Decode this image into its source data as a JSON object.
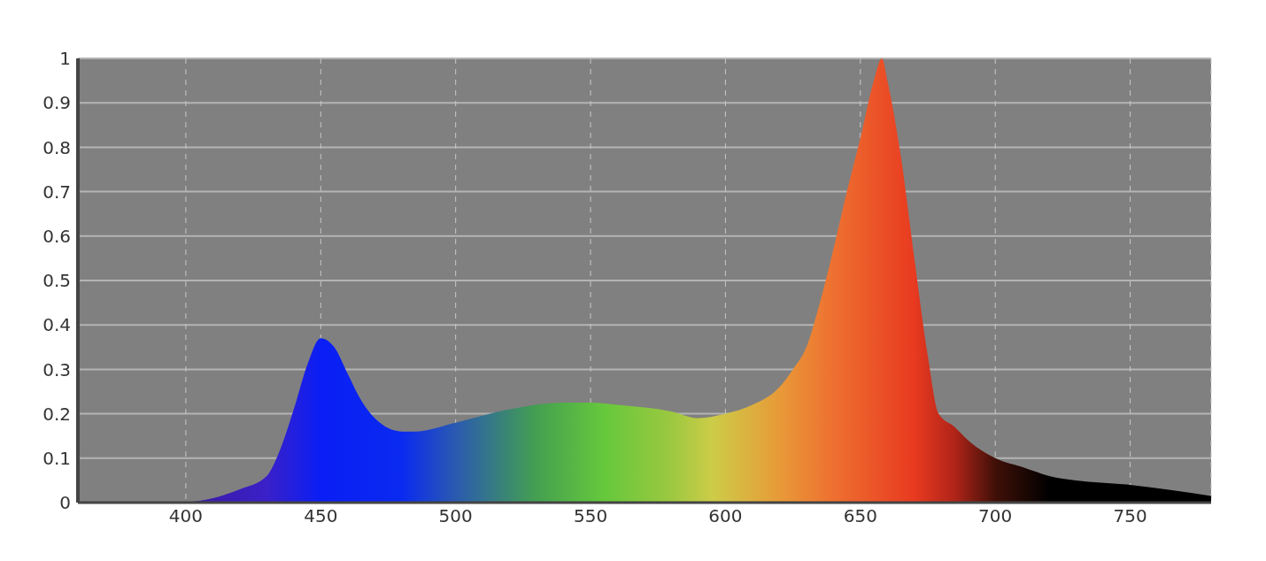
{
  "chart_data": {
    "type": "area",
    "x": [
      400,
      410,
      420,
      430,
      435,
      440,
      445,
      450,
      455,
      460,
      465,
      470,
      480,
      485,
      500,
      520,
      540,
      550,
      560,
      580,
      590,
      600,
      610,
      620,
      625,
      630,
      635,
      640,
      645,
      650,
      655,
      658,
      660,
      665,
      670,
      675,
      679,
      685,
      690,
      700,
      710,
      720,
      730,
      750,
      780
    ],
    "values": [
      0.0,
      0.01,
      0.03,
      0.06,
      0.12,
      0.21,
      0.31,
      0.37,
      0.35,
      0.29,
      0.23,
      0.19,
      0.16,
      0.16,
      0.18,
      0.21,
      0.225,
      0.225,
      0.22,
      0.205,
      0.19,
      0.2,
      0.22,
      0.26,
      0.3,
      0.35,
      0.45,
      0.57,
      0.7,
      0.82,
      0.95,
      1.0,
      0.95,
      0.78,
      0.55,
      0.33,
      0.2,
      0.17,
      0.14,
      0.1,
      0.08,
      0.06,
      0.05,
      0.04,
      0.015
    ],
    "xlim": [
      360,
      780
    ],
    "ylim": [
      0,
      1
    ],
    "xticks": [
      400,
      450,
      500,
      550,
      600,
      650,
      700,
      750
    ],
    "yticks": [
      0,
      0.1,
      0.2,
      0.3,
      0.4,
      0.5,
      0.6,
      0.7,
      0.8,
      0.9,
      1
    ],
    "grid": true
  }
}
